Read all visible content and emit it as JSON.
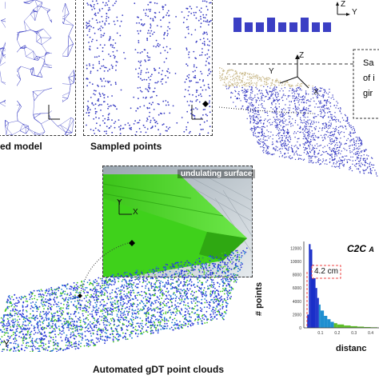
{
  "captions": {
    "mesh_model": "ed model",
    "sampled_points": "Sampled points",
    "automated": "Automated gDT point clouds"
  },
  "labels": {
    "undulating_surface": "undulating surface",
    "callout_line1": "Sa",
    "callout_line2": "of i",
    "callout_line3": "gir",
    "axis_x": "X",
    "axis_y": "Y",
    "axis_z": "Z"
  },
  "histogram": {
    "title": "C2C",
    "title_suffix": "A",
    "ylabel": "# points",
    "xlabel": "distanc",
    "annotation": "4.2 cm"
  },
  "chart_data": {
    "type": "bar",
    "title": "C2C A",
    "xlabel": "distanc",
    "ylabel": "# points",
    "x_tick_labels": [
      "0.1",
      "0.2",
      "0.3",
      "0.4"
    ],
    "y_tick_labels": [
      "12000",
      "10000",
      "8000",
      "6000",
      "4000",
      "2000",
      "0"
    ],
    "annotations": [
      "4.2 cm"
    ],
    "x": [
      0.02,
      0.03,
      0.04,
      0.05,
      0.06,
      0.07,
      0.08,
      0.09,
      0.1,
      0.12,
      0.14,
      0.16,
      0.18,
      0.2,
      0.24,
      0.28,
      0.32,
      0.36,
      0.4
    ],
    "values": [
      2000,
      12600,
      11800,
      9500,
      8000,
      6000,
      4500,
      3500,
      2600,
      1800,
      1300,
      900,
      700,
      500,
      350,
      250,
      180,
      120,
      80
    ],
    "ylim": [
      0,
      13000
    ]
  },
  "colors": {
    "mesh_blue": "#3b3fc4",
    "tan_points": "#c9b98a",
    "green_surface": "#44d61e",
    "hist_blue": "#1a2fc9",
    "hist_green": "#5fbf2a"
  }
}
